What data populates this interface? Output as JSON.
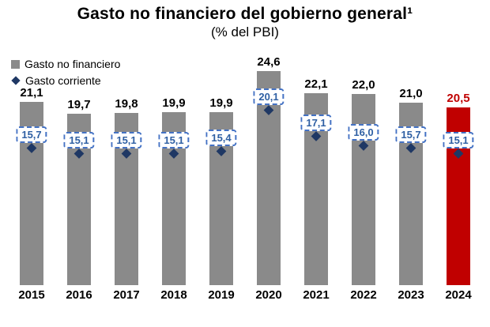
{
  "title": "Gasto no financiero del gobierno general¹",
  "subtitle": "(% del PBI)",
  "legend": [
    {
      "label": "Gasto no financiero",
      "marker": "square-icon",
      "color": "#8a8a8a"
    },
    {
      "label": "Gasto corriente",
      "marker": "diamond-icon",
      "color": "#1f3864"
    }
  ],
  "colors": {
    "bar": "#8a8a8a",
    "bar_highlight": "#c00000",
    "diamond": "#1f3864",
    "value_label": "#000000",
    "value_label_highlight": "#c00000",
    "corriente_text": "#2e5fa3",
    "corriente_border": "#4472c4"
  },
  "chart_data": {
    "type": "bar",
    "title": "Gasto no financiero del gobierno general (% del PBI)",
    "categories": [
      "2015",
      "2016",
      "2017",
      "2018",
      "2019",
      "2020",
      "2021",
      "2022",
      "2023",
      "2024"
    ],
    "series": [
      {
        "name": "Gasto no financiero",
        "values": [
          21.1,
          19.7,
          19.8,
          19.9,
          19.9,
          24.6,
          22.1,
          22.0,
          21.0,
          20.5
        ]
      },
      {
        "name": "Gasto corriente",
        "values": [
          15.7,
          15.1,
          15.1,
          15.1,
          15.4,
          20.1,
          17.1,
          16.0,
          15.7,
          15.1
        ]
      }
    ],
    "highlight_category": "2024",
    "ylim": [
      0,
      25
    ],
    "grid": false,
    "legend_position": "top-left",
    "value_label_format": "comma-decimal"
  }
}
